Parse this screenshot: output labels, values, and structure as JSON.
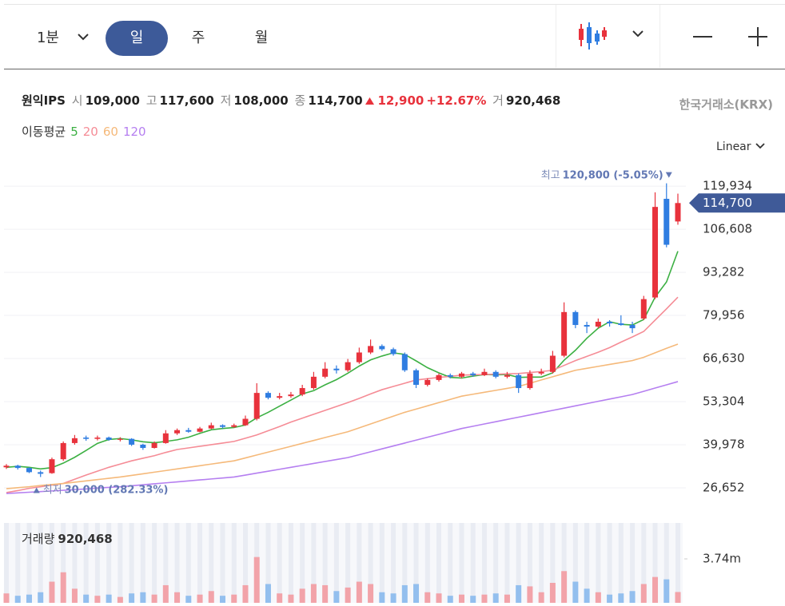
{
  "toolbar": {
    "tabs": [
      "1분",
      "일",
      "주",
      "월"
    ],
    "selected": "일",
    "scale": "Linear"
  },
  "header": {
    "name": "원익IPS",
    "open_label": "시",
    "open": "109,000",
    "high_label": "고",
    "high": "117,600",
    "low_label": "저",
    "low": "108,000",
    "close_label": "종",
    "close": "114,700",
    "change": "12,900",
    "change_pct": "+12.67%",
    "volume_label": "거",
    "volume": "920,468",
    "exchange": "한국거래소(KRX)",
    "ma_label": "이동평균"
  },
  "chart_data": {
    "type": "candlestick",
    "up_color": "#e8323c",
    "down_color": "#2f7de1",
    "volume_up_color": "#f2a3a9",
    "volume_down_color": "#93bfee",
    "ylim": [
      19500,
      128100
    ],
    "yticks": [
      {
        "value": 26652,
        "label": "26,652"
      },
      {
        "value": 39978,
        "label": "39,978"
      },
      {
        "value": 53304,
        "label": "53,304"
      },
      {
        "value": 66630,
        "label": "66,630"
      },
      {
        "value": 79956,
        "label": "79,956"
      },
      {
        "value": 93282,
        "label": "93,282"
      },
      {
        "value": 106608,
        "label": "106,608"
      },
      {
        "value": 119934,
        "label": "119,934"
      }
    ],
    "grid": true,
    "annotations": {
      "high_label": "최고",
      "high_text": "120,800 (-5.05%)",
      "low_label": "최저",
      "low_text": "30,000 (282.33%)"
    },
    "ohlc": [
      [
        33000,
        34000,
        32500,
        33500
      ],
      [
        33500,
        33800,
        32300,
        32800
      ],
      [
        32800,
        33000,
        31200,
        31500
      ],
      [
        31500,
        32000,
        30000,
        31000
      ],
      [
        31200,
        36000,
        31000,
        35500
      ],
      [
        35500,
        41000,
        35000,
        40500
      ],
      [
        40500,
        43000,
        40000,
        42000
      ],
      [
        42200,
        42800,
        41200,
        41800
      ],
      [
        41800,
        42800,
        41300,
        42200
      ],
      [
        42200,
        42500,
        41200,
        41500
      ],
      [
        41500,
        42300,
        41000,
        41800
      ],
      [
        41800,
        42000,
        39600,
        40000
      ],
      [
        40000,
        40300,
        38400,
        39000
      ],
      [
        39000,
        41000,
        38800,
        40500
      ],
      [
        40500,
        44500,
        40300,
        43500
      ],
      [
        43500,
        45000,
        43000,
        44500
      ],
      [
        44500,
        45200,
        43700,
        44000
      ],
      [
        44000,
        45500,
        43800,
        45000
      ],
      [
        45000,
        46800,
        44800,
        46000
      ],
      [
        46000,
        46300,
        45000,
        45500
      ],
      [
        45500,
        46500,
        45200,
        46000
      ],
      [
        46000,
        49000,
        45800,
        48000
      ],
      [
        48000,
        59000,
        47500,
        56000
      ],
      [
        56000,
        56500,
        54000,
        54500
      ],
      [
        54500,
        56000,
        54000,
        55000
      ],
      [
        55000,
        56300,
        54500,
        55500
      ],
      [
        55500,
        58500,
        55000,
        57500
      ],
      [
        57500,
        62500,
        57000,
        61000
      ],
      [
        61000,
        65500,
        60500,
        63500
      ],
      [
        63500,
        64500,
        62000,
        63000
      ],
      [
        63000,
        66500,
        62500,
        65500
      ],
      [
        65500,
        70000,
        65000,
        68500
      ],
      [
        68500,
        72500,
        68000,
        70500
      ],
      [
        70500,
        71000,
        69000,
        69500
      ],
      [
        69500,
        70000,
        67500,
        68000
      ],
      [
        68000,
        68500,
        62500,
        63000
      ],
      [
        63000,
        63500,
        57500,
        58500
      ],
      [
        58500,
        60500,
        58000,
        60000
      ],
      [
        60000,
        62000,
        59500,
        61500
      ],
      [
        61500,
        62000,
        60500,
        61000
      ],
      [
        61000,
        62500,
        60500,
        62000
      ],
      [
        62000,
        62500,
        61000,
        61500
      ],
      [
        61500,
        63500,
        61200,
        62500
      ],
      [
        62500,
        63000,
        60500,
        61000
      ],
      [
        61000,
        62500,
        60500,
        61500
      ],
      [
        61500,
        62000,
        56000,
        57500
      ],
      [
        57500,
        63000,
        57000,
        62000
      ],
      [
        62000,
        63500,
        61500,
        62500
      ],
      [
        62500,
        69000,
        62000,
        67500
      ],
      [
        67500,
        84000,
        67000,
        81000
      ],
      [
        81000,
        81500,
        76000,
        77000
      ],
      [
        77000,
        78000,
        74500,
        76500
      ],
      [
        76500,
        79000,
        76000,
        78000
      ],
      [
        78000,
        78500,
        76500,
        77500
      ],
      [
        77500,
        80000,
        76800,
        77000
      ],
      [
        77000,
        78000,
        74500,
        76000
      ],
      [
        79000,
        86000,
        78500,
        85000
      ],
      [
        85500,
        118000,
        85000,
        113500
      ],
      [
        116000,
        120800,
        101000,
        101800
      ],
      [
        109000,
        117600,
        108000,
        114700
      ]
    ],
    "series": [
      {
        "name": "5",
        "color": "#3cb043",
        "values": [
          33000,
          33300,
          33000,
          32500,
          32900,
          34300,
          36100,
          38200,
          40400,
          41600,
          41900,
          41500,
          40900,
          40600,
          41000,
          41500,
          42300,
          43500,
          44600,
          45000,
          45300,
          46100,
          48300,
          50000,
          51900,
          53800,
          55700,
          56700,
          58500,
          60100,
          62100,
          64300,
          66200,
          67400,
          68400,
          67900,
          65900,
          63800,
          62200,
          60800,
          60600,
          61200,
          61700,
          61600,
          61700,
          60800,
          60900,
          60900,
          62200,
          66100,
          69200,
          72900,
          76000,
          78000,
          77200,
          77000,
          78700,
          85600,
          90300,
          99800
        ]
      },
      {
        "name": "20",
        "color": "#f58c96",
        "values": [
          25200,
          25800,
          26500,
          27000,
          27500,
          28000,
          29300,
          30600,
          31800,
          33000,
          34000,
          35000,
          35800,
          36600,
          37600,
          38500,
          39000,
          39500,
          40000,
          40500,
          41000,
          42000,
          43000,
          44300,
          45600,
          47000,
          48200,
          49400,
          50600,
          51800,
          53000,
          54300,
          55700,
          57000,
          58000,
          59000,
          60000,
          60400,
          60800,
          61100,
          61500,
          61600,
          61700,
          61800,
          61900,
          62000,
          62300,
          62600,
          63000,
          64500,
          66000,
          67300,
          68600,
          70000,
          71700,
          73300,
          75000,
          78500,
          82000,
          85600
        ]
      },
      {
        "name": "60",
        "color": "#f5b97a",
        "values": [
          26400,
          26700,
          27000,
          27400,
          27700,
          28000,
          28400,
          28800,
          29200,
          29600,
          30000,
          30500,
          31000,
          31500,
          32000,
          32500,
          33000,
          33500,
          34000,
          34500,
          35000,
          35900,
          36800,
          37700,
          38600,
          39500,
          40400,
          41300,
          42200,
          43100,
          44000,
          45200,
          46400,
          47600,
          48800,
          50000,
          51000,
          52000,
          53000,
          54000,
          55000,
          55600,
          56200,
          56800,
          57400,
          58000,
          59000,
          60000,
          61000,
          62000,
          63000,
          63600,
          64200,
          64800,
          65400,
          66000,
          67000,
          68400,
          69800,
          71100
        ]
      },
      {
        "name": "120",
        "color": "#b57ff0",
        "values": [
          24900,
          25100,
          25300,
          25500,
          25700,
          25900,
          26100,
          26300,
          26600,
          26800,
          27000,
          27300,
          27600,
          27900,
          28200,
          28500,
          28800,
          29100,
          29400,
          29700,
          30000,
          30600,
          31200,
          31800,
          32400,
          33000,
          33600,
          34200,
          34800,
          35400,
          36000,
          36900,
          37800,
          38700,
          39600,
          40500,
          41400,
          42300,
          43200,
          44100,
          45000,
          45700,
          46400,
          47100,
          47800,
          48500,
          49200,
          49900,
          50600,
          51300,
          52000,
          52700,
          53400,
          54100,
          54800,
          55500,
          56500,
          57500,
          58500,
          59500
        ]
      }
    ],
    "volume_label": "거래량",
    "volume": [
      800000,
      600000,
      700000,
      900000,
      1800000,
      2600000,
      1200000,
      700000,
      600000,
      700000,
      500000,
      800000,
      900000,
      700000,
      1500000,
      900000,
      600000,
      700000,
      1000000,
      600000,
      700000,
      1500000,
      3900000,
      1600000,
      800000,
      700000,
      1200000,
      1600000,
      1500000,
      1000000,
      1300000,
      1800000,
      1600000,
      900000,
      800000,
      1500000,
      1600000,
      900000,
      800000,
      600000,
      700000,
      600000,
      700000,
      800000,
      700000,
      1500000,
      1400000,
      900000,
      1700000,
      2700000,
      1800000,
      1200000,
      900000,
      700000,
      800000,
      1000000,
      1600000,
      2200000,
      2000000,
      920468
    ],
    "vylim": [
      0,
      6800000
    ],
    "vyticks": [
      {
        "value": 3740000,
        "label": "3.74m"
      }
    ]
  }
}
